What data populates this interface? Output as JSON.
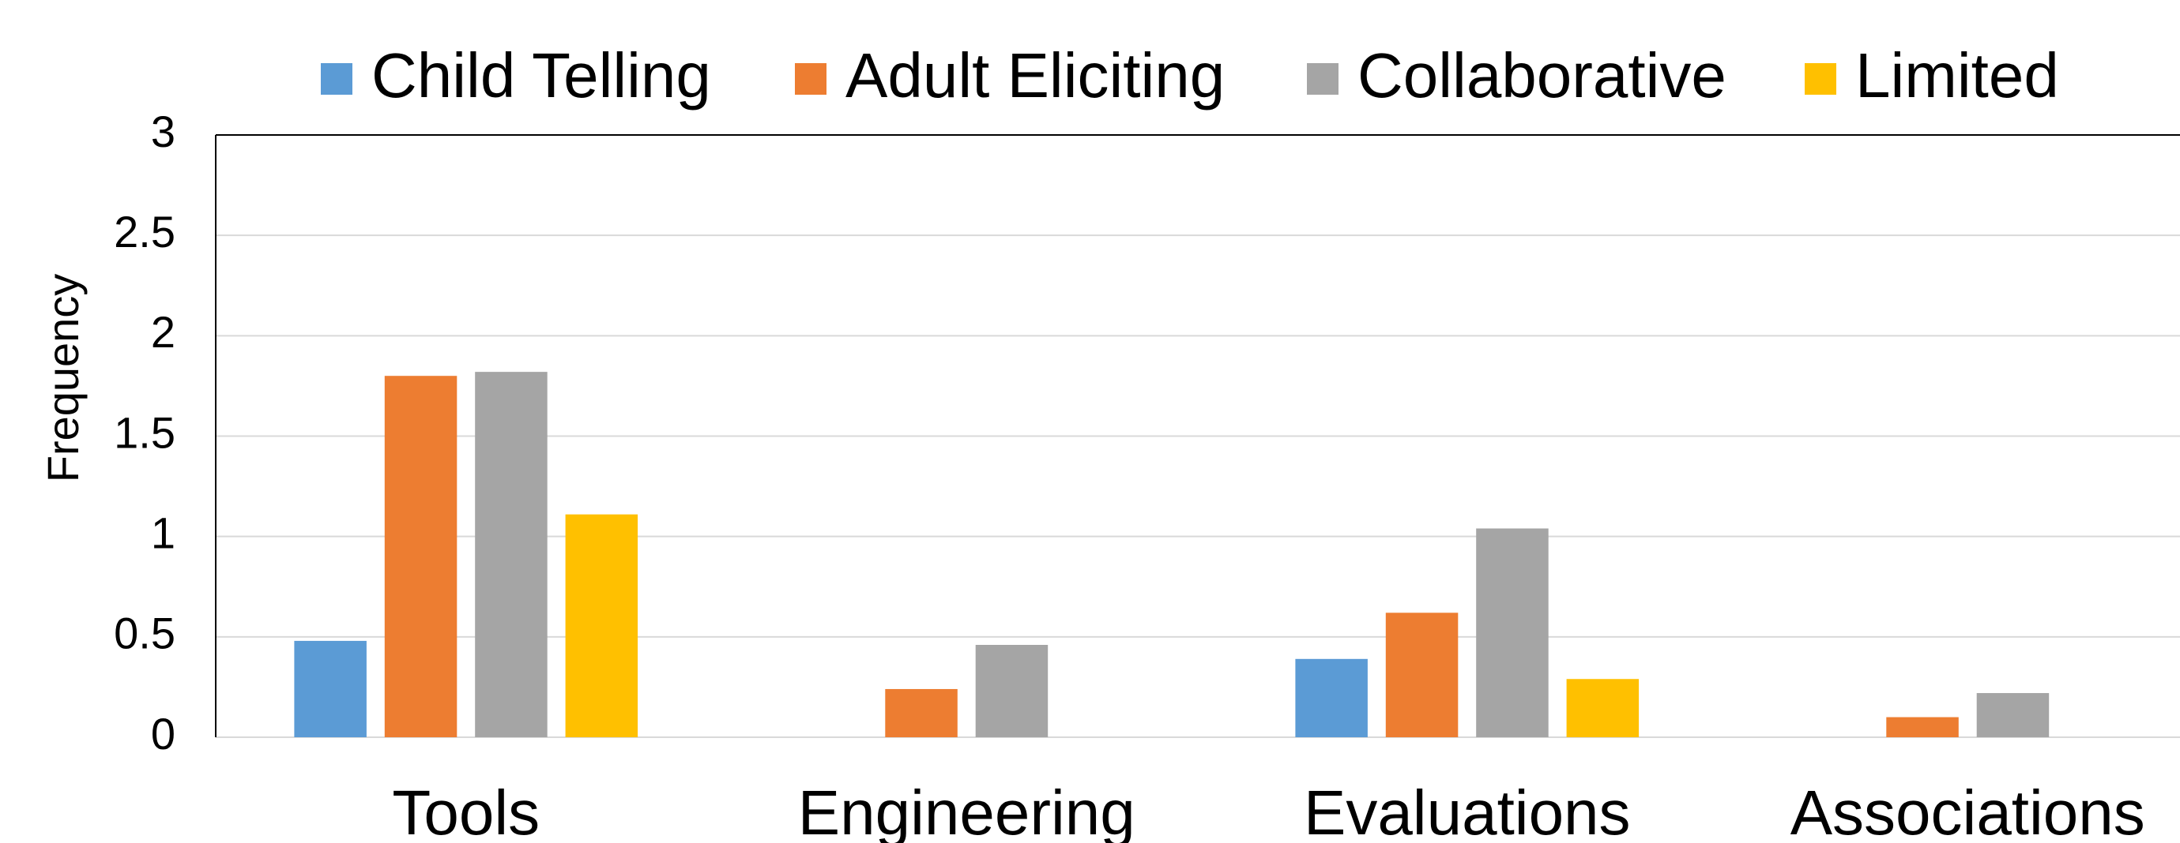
{
  "chart_data": {
    "type": "bar",
    "y_label": "Frequency",
    "categories": [
      "Tools",
      "Engineering",
      "Evaluations",
      "Associations"
    ],
    "series": [
      {
        "name": "Child Telling",
        "color": "#5b9bd5",
        "values": [
          0.48,
          0,
          0.39,
          0
        ]
      },
      {
        "name": "Adult Eliciting",
        "color": "#ed7d31",
        "values": [
          1.8,
          0.24,
          0.62,
          0.1
        ]
      },
      {
        "name": "Collaborative",
        "color": "#a5a5a5",
        "values": [
          1.82,
          0.46,
          1.04,
          0.22
        ]
      },
      {
        "name": "Limited",
        "color": "#ffc000",
        "values": [
          1.11,
          0,
          0.29,
          0
        ]
      }
    ],
    "ylim": [
      0,
      3
    ],
    "yticks": [
      0,
      0.5,
      1,
      1.5,
      2,
      2.5,
      3
    ],
    "grid": true,
    "legend": "top"
  }
}
